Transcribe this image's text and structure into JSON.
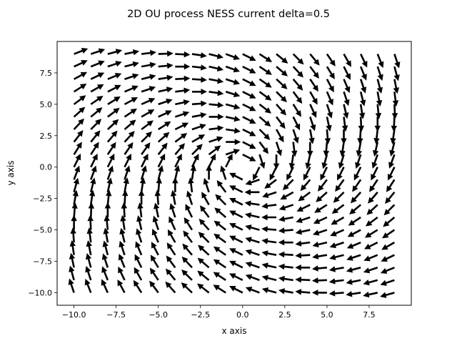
{
  "chart_data": {
    "type": "quiver",
    "title": "2D OU process NESS current delta=0.5",
    "xlabel": "x axis",
    "ylabel": "y axis",
    "xlim": [
      -11,
      10
    ],
    "ylim": [
      -11,
      10
    ],
    "xticks": [
      -10.0,
      -7.5,
      -5.0,
      -2.5,
      0.0,
      2.5,
      5.0,
      7.5
    ],
    "xtick_labels": [
      "−10.0",
      "−7.5",
      "−5.0",
      "−2.5",
      "0.0",
      "2.5",
      "5.0",
      "7.5"
    ],
    "yticks": [
      -10.0,
      -7.5,
      -5.0,
      -2.5,
      0.0,
      2.5,
      5.0,
      7.5
    ],
    "ytick_labels": [
      "−10.0",
      "−7.5",
      "−5.0",
      "−2.5",
      "0.0",
      "2.5",
      "5.0",
      "7.5"
    ],
    "grid": false,
    "grid_x": {
      "start": -10,
      "stop": 9,
      "step": 1
    },
    "grid_y": {
      "start": -10,
      "stop": 9,
      "step": 1
    },
    "field": {
      "description_formula": "u = -0.5*x + y ; v = -x - 0.5*y (normalized arrows, rotating counter-clockwise)",
      "delta": 0.5
    },
    "arrow_color": "#000000"
  }
}
